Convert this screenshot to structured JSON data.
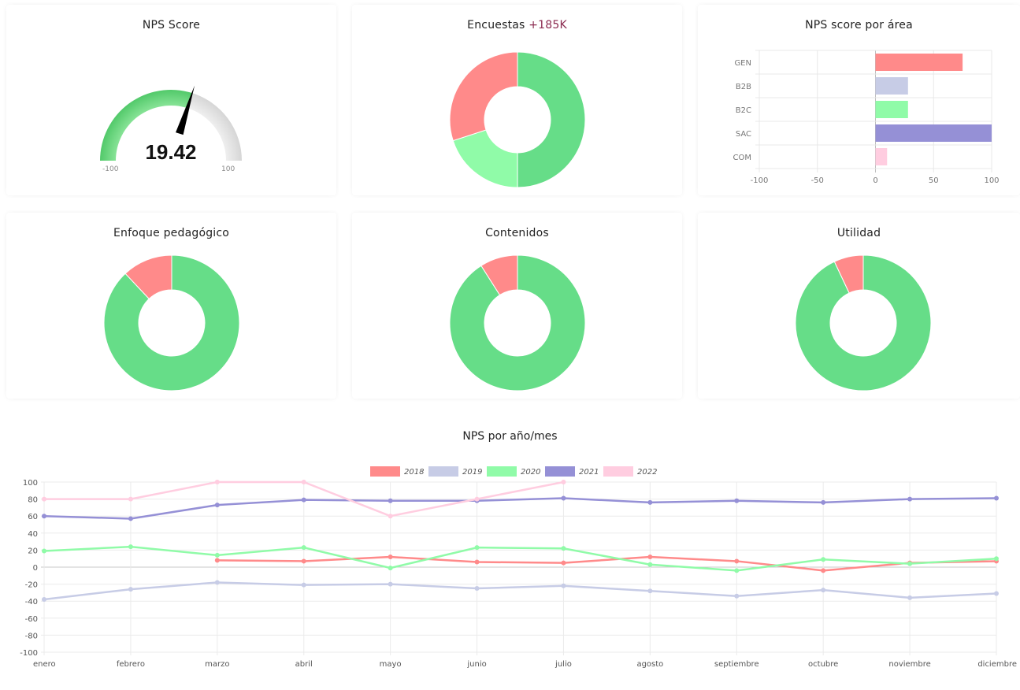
{
  "nps_card": {
    "title": "NPS Score",
    "value": "19.42",
    "min_label": "-100",
    "max_label": "100"
  },
  "encuestas_card": {
    "title": "Encuestas",
    "count": "+185K"
  },
  "area_card": {
    "title": "NPS score por área"
  },
  "enfoque_card": {
    "title": "Enfoque pedagógico"
  },
  "contenidos_card": {
    "title": "Contenidos"
  },
  "utilidad_card": {
    "title": "Utilidad"
  },
  "line_section": {
    "title": "NPS por año/mes"
  },
  "colors": {
    "green": "#66dd88",
    "red": "#ff8a8a",
    "light_green": "#90fba8",
    "lavender": "#c7cce6",
    "purple": "#9590d6",
    "pink": "#ffcde0",
    "gray": "#e6e6e6"
  },
  "chart_data": [
    {
      "type": "gauge",
      "value": 19.42,
      "range": [
        -100,
        100
      ]
    },
    {
      "type": "pie",
      "subtype": "doughnut",
      "values": [
        50,
        20,
        30
      ],
      "colors": [
        "#66dd88",
        "#90fba8",
        "#ff8a8a"
      ]
    },
    {
      "type": "bar",
      "orientation": "horizontal",
      "categories": [
        "GEN",
        "B2B",
        "B2C",
        "SAC",
        "COM"
      ],
      "values": [
        75,
        28,
        28,
        100,
        10
      ],
      "colors": [
        "#ff8a8a",
        "#c7cce6",
        "#90fba8",
        "#9590d6",
        "#ffcde0"
      ],
      "xlim": [
        -100,
        100
      ],
      "xticks": [
        "-100",
        "-50",
        "0",
        "50",
        "100"
      ],
      "grid": true
    },
    {
      "type": "pie",
      "subtype": "doughnut",
      "values": [
        88,
        12
      ],
      "colors": [
        "#66dd88",
        "#ff8a8a"
      ]
    },
    {
      "type": "pie",
      "subtype": "doughnut",
      "values": [
        91,
        9
      ],
      "colors": [
        "#66dd88",
        "#ff8a8a"
      ]
    },
    {
      "type": "pie",
      "subtype": "doughnut",
      "values": [
        93,
        7
      ],
      "colors": [
        "#66dd88",
        "#ff8a8a"
      ]
    },
    {
      "type": "line",
      "categories": [
        "enero",
        "febrero",
        "marzo",
        "abril",
        "mayo",
        "junio",
        "julio",
        "agosto",
        "septiembre",
        "octubre",
        "noviembre",
        "diciembre"
      ],
      "ylim": [
        -100,
        100
      ],
      "yticks": [
        "100",
        "80",
        "60",
        "40",
        "20",
        "0",
        "-20",
        "-40",
        "-60",
        "-80",
        "-100"
      ],
      "legend_position": "top",
      "grid": true,
      "series": [
        {
          "name": "2018",
          "color": "#ff8a8a",
          "values": [
            null,
            null,
            8,
            7,
            12,
            6,
            5,
            12,
            7,
            -4,
            5,
            7
          ]
        },
        {
          "name": "2019",
          "color": "#c7cce6",
          "values": [
            -38,
            -26,
            -18,
            -21,
            -20,
            -25,
            -22,
            -28,
            -34,
            -27,
            -36,
            -31
          ]
        },
        {
          "name": "2020",
          "color": "#90fba8",
          "values": [
            19,
            24,
            14,
            23,
            -1,
            23,
            22,
            3,
            -4,
            9,
            4,
            10
          ]
        },
        {
          "name": "2021",
          "color": "#9590d6",
          "values": [
            60,
            57,
            73,
            79,
            78,
            78,
            81,
            76,
            78,
            76,
            80,
            81
          ]
        },
        {
          "name": "2022",
          "color": "#ffcde0",
          "values": [
            80,
            80,
            100,
            100,
            60,
            80,
            100,
            null,
            null,
            null,
            null,
            null
          ]
        }
      ]
    }
  ]
}
